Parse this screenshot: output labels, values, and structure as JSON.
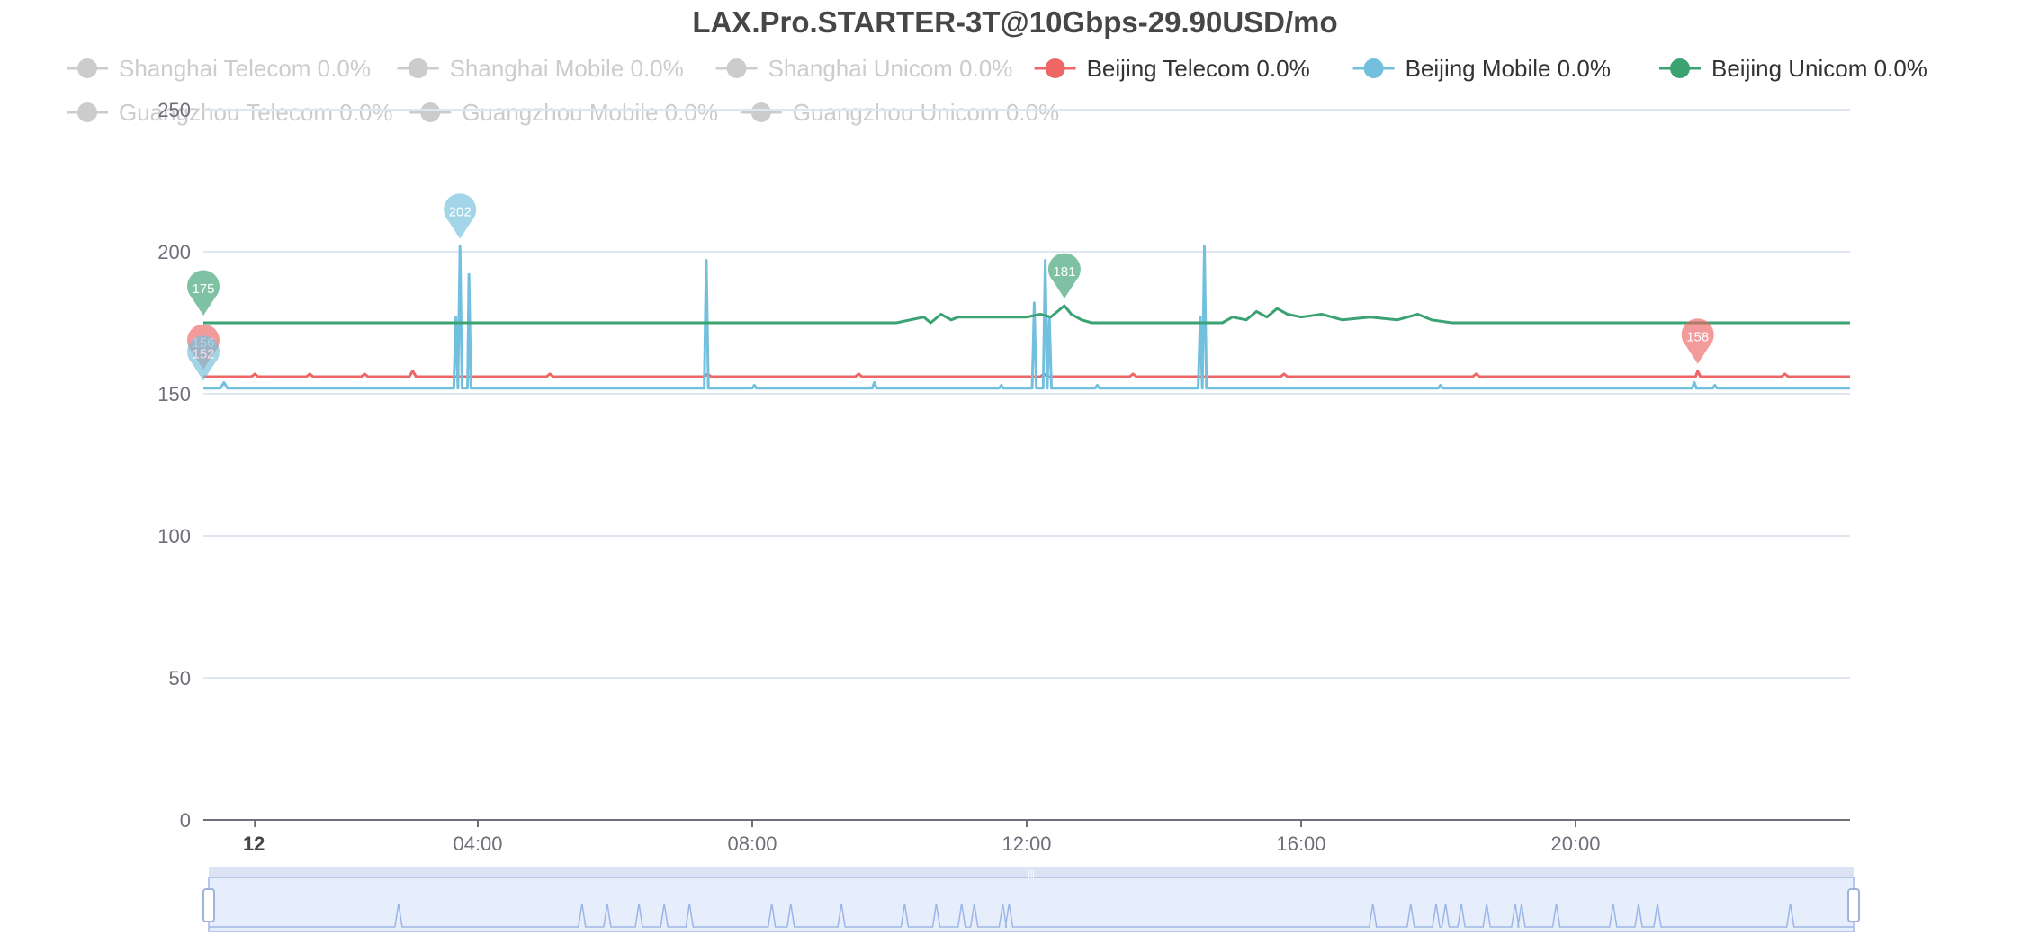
{
  "chart_data": {
    "type": "line",
    "title": "LAX.Pro.STARTER-3T@10Gbps-29.90USD/mo",
    "xlabel": "",
    "ylabel": "",
    "x_tick_labels": [
      "12",
      "04:00",
      "08:00",
      "12:00",
      "16:00",
      "20:00"
    ],
    "x_tick_hours": [
      0.75,
      4,
      8,
      12,
      16,
      20
    ],
    "x_range_hours": [
      0,
      24
    ],
    "y_ticks": [
      0,
      50,
      100,
      150,
      200,
      250
    ],
    "ylim": [
      0,
      250
    ],
    "grid": true,
    "legend_position": "top",
    "legend": [
      {
        "label": "Shanghai Telecom 0.0%",
        "color": "#cccccc",
        "active": false
      },
      {
        "label": "Shanghai Mobile 0.0%",
        "color": "#cccccc",
        "active": false
      },
      {
        "label": "Shanghai Unicom 0.0%",
        "color": "#cccccc",
        "active": false
      },
      {
        "label": "Beijing Telecom 0.0%",
        "color": "#ee6666",
        "active": true
      },
      {
        "label": "Beijing Mobile 0.0%",
        "color": "#73c0de",
        "active": true
      },
      {
        "label": "Beijing Unicom 0.0%",
        "color": "#3ba272",
        "active": true
      },
      {
        "label": "Guangzhou Telecom 0.0%",
        "color": "#cccccc",
        "active": false
      },
      {
        "label": "Guangzhou Mobile 0.0%",
        "color": "#cccccc",
        "active": false
      },
      {
        "label": "Guangzhou Unicom 0.0%",
        "color": "#cccccc",
        "active": false
      }
    ],
    "series": [
      {
        "name": "Beijing Telecom",
        "color": "#ee6666",
        "points": [
          [
            0,
            156
          ],
          [
            0.7,
            156
          ],
          [
            0.75,
            157
          ],
          [
            0.8,
            156
          ],
          [
            1.5,
            156
          ],
          [
            1.55,
            157
          ],
          [
            1.6,
            156
          ],
          [
            2.3,
            156
          ],
          [
            2.35,
            157
          ],
          [
            2.4,
            156
          ],
          [
            3.0,
            156
          ],
          [
            3.05,
            158
          ],
          [
            3.1,
            156
          ],
          [
            5.0,
            156
          ],
          [
            5.05,
            157
          ],
          [
            5.1,
            156
          ],
          [
            7.3,
            156
          ],
          [
            7.35,
            157
          ],
          [
            7.4,
            156
          ],
          [
            9.5,
            156
          ],
          [
            9.55,
            157
          ],
          [
            9.6,
            156
          ],
          [
            12.2,
            156
          ],
          [
            12.25,
            157
          ],
          [
            12.3,
            156
          ],
          [
            13.5,
            156
          ],
          [
            13.55,
            157
          ],
          [
            13.6,
            156
          ],
          [
            15.7,
            156
          ],
          [
            15.75,
            157
          ],
          [
            15.8,
            156
          ],
          [
            18.5,
            156
          ],
          [
            18.55,
            157
          ],
          [
            18.6,
            156
          ],
          [
            21.75,
            156
          ],
          [
            21.78,
            158
          ],
          [
            21.82,
            156
          ],
          [
            23.0,
            156
          ],
          [
            23.05,
            157
          ],
          [
            23.1,
            156
          ],
          [
            24,
            156
          ]
        ],
        "min": {
          "value": 156,
          "x": 0
        },
        "max": {
          "value": 158,
          "x": 21.78
        }
      },
      {
        "name": "Beijing Mobile",
        "color": "#73c0de",
        "points": [
          [
            0,
            152
          ],
          [
            0.25,
            152
          ],
          [
            0.3,
            154
          ],
          [
            0.35,
            152
          ],
          [
            3.65,
            152
          ],
          [
            3.68,
            177
          ],
          [
            3.71,
            152
          ],
          [
            3.74,
            202
          ],
          [
            3.77,
            152
          ],
          [
            3.85,
            152
          ],
          [
            3.87,
            192
          ],
          [
            3.9,
            152
          ],
          [
            7.3,
            152
          ],
          [
            7.33,
            197
          ],
          [
            7.36,
            152
          ],
          [
            8.0,
            152
          ],
          [
            8.03,
            153
          ],
          [
            8.06,
            152
          ],
          [
            9.75,
            152
          ],
          [
            9.78,
            154
          ],
          [
            9.81,
            152
          ],
          [
            11.6,
            152
          ],
          [
            11.63,
            153
          ],
          [
            11.66,
            152
          ],
          [
            12.08,
            152
          ],
          [
            12.11,
            182
          ],
          [
            12.14,
            152
          ],
          [
            12.24,
            152
          ],
          [
            12.27,
            197
          ],
          [
            12.3,
            152
          ],
          [
            12.33,
            177
          ],
          [
            12.36,
            152
          ],
          [
            13.0,
            152
          ],
          [
            13.03,
            153
          ],
          [
            13.06,
            152
          ],
          [
            14.5,
            152
          ],
          [
            14.53,
            177
          ],
          [
            14.56,
            152
          ],
          [
            14.59,
            202
          ],
          [
            14.62,
            152
          ],
          [
            18.0,
            152
          ],
          [
            18.03,
            153
          ],
          [
            18.06,
            152
          ],
          [
            21.7,
            152
          ],
          [
            21.73,
            154
          ],
          [
            21.76,
            152
          ],
          [
            22.0,
            152
          ],
          [
            22.03,
            153
          ],
          [
            22.06,
            152
          ],
          [
            24,
            152
          ]
        ],
        "min": {
          "value": 152,
          "x": 0
        },
        "max": {
          "value": 202,
          "x": 3.74
        }
      },
      {
        "name": "Beijing Unicom",
        "color": "#3ba272",
        "points": [
          [
            0,
            175
          ],
          [
            10.1,
            175
          ],
          [
            10.3,
            176
          ],
          [
            10.5,
            177
          ],
          [
            10.6,
            175
          ],
          [
            10.75,
            178
          ],
          [
            10.9,
            176
          ],
          [
            11.0,
            177
          ],
          [
            11.3,
            177
          ],
          [
            12.0,
            177
          ],
          [
            12.2,
            178
          ],
          [
            12.35,
            177
          ],
          [
            12.45,
            179
          ],
          [
            12.55,
            181
          ],
          [
            12.65,
            178
          ],
          [
            12.8,
            176
          ],
          [
            12.95,
            175
          ],
          [
            14.85,
            175
          ],
          [
            15.0,
            177
          ],
          [
            15.2,
            176
          ],
          [
            15.35,
            179
          ],
          [
            15.5,
            177
          ],
          [
            15.65,
            180
          ],
          [
            15.8,
            178
          ],
          [
            16.0,
            177
          ],
          [
            16.3,
            178
          ],
          [
            16.6,
            176
          ],
          [
            17.0,
            177
          ],
          [
            17.4,
            176
          ],
          [
            17.7,
            178
          ],
          [
            17.9,
            176
          ],
          [
            18.2,
            175
          ],
          [
            24,
            175
          ]
        ],
        "min": {
          "value": 175,
          "x": 0
        },
        "max": {
          "value": 181,
          "x": 12.55
        }
      }
    ],
    "datazoom": {
      "range_start_percent": 0,
      "range_end_percent": 100,
      "handle_label": "|||",
      "preview_spike_hours": [
        3.0,
        5.9,
        6.3,
        6.8,
        7.2,
        7.6,
        8.9,
        9.2,
        10.0,
        11.0,
        11.5,
        11.9,
        12.1,
        12.55,
        12.65,
        18.4,
        19.0,
        19.4,
        19.55,
        19.8,
        20.2,
        20.65,
        20.75,
        21.3,
        22.2,
        22.6,
        22.9,
        25.0
      ]
    }
  }
}
